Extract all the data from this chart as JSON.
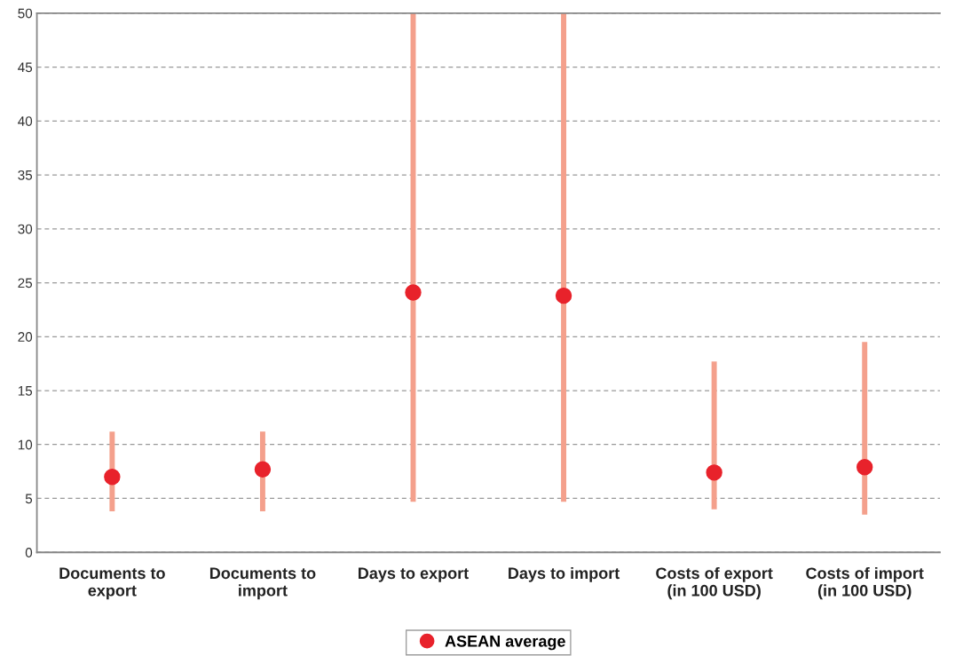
{
  "chart_data": {
    "type": "bar",
    "categories": [
      "Documents to\nexport",
      "Documents to\nimport",
      "Days to export",
      "Days to import",
      "Costs of export\n(in 100 USD)",
      "Costs of import\n(in 100 USD)"
    ],
    "series": [
      {
        "color": "#f4a08c",
        "values": [
          7.4,
          7.4,
          45.3,
          45.3,
          13.7,
          16.0
        ],
        "base": [
          3.8,
          3.8,
          4.7,
          4.7,
          4.0,
          3.5
        ]
      },
      {
        "type": "scatter",
        "name": "ASEAN average",
        "color": "#e8222b",
        "values": [
          7.0,
          7.7,
          24.1,
          23.8,
          7.4,
          7.9
        ]
      }
    ],
    "ylim": [
      0,
      50
    ],
    "yticks": [
      0,
      5,
      10,
      15,
      20,
      25,
      30,
      35,
      40,
      45,
      50
    ],
    "grid": "y",
    "legend": "bottom",
    "marker": "circle"
  }
}
